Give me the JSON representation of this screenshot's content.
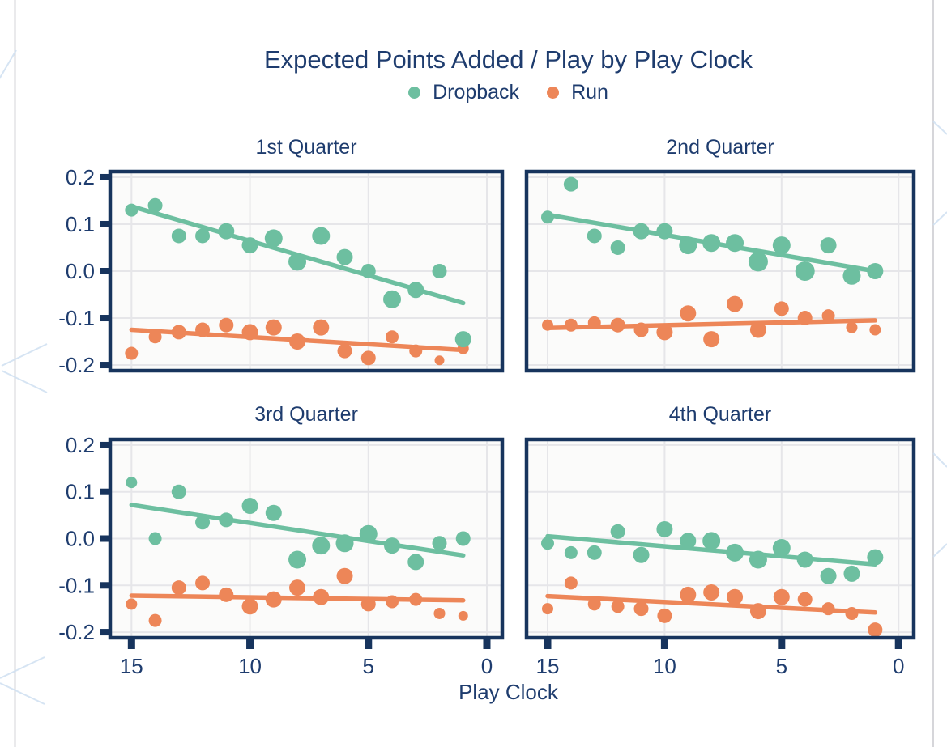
{
  "header": {
    "title": "Expected Points Added / Play by Play Clock"
  },
  "legend": {
    "items": [
      {
        "label": "Dropback",
        "color": "#6dbfa0"
      },
      {
        "label": "Run",
        "color": "#ed8658"
      }
    ]
  },
  "axes": {
    "x_label": "Play Clock",
    "x_tick_labels": [
      "15",
      "10",
      "5",
      "0"
    ],
    "y_tick_labels": [
      "0.2",
      "0.1",
      "0.0",
      "-0.1",
      "-0.2"
    ]
  },
  "chart_data": {
    "type": "scatter",
    "title": "Expected Points Added / Play by Play Clock",
    "xlabel": "Play Clock",
    "ylabel": "",
    "x_axis_reversed": true,
    "xlim": [
      15,
      0
    ],
    "ylim": [
      -0.2,
      0.2
    ],
    "x_ticks": [
      15,
      10,
      5,
      0
    ],
    "y_ticks": [
      0.2,
      0.1,
      0.0,
      -0.1,
      -0.2
    ],
    "grid": true,
    "legend_position": "top-center",
    "point_format": [
      "play_clock",
      "epa_per_play",
      "radius_px"
    ],
    "colors": {
      "dropback": "#6dbfa0",
      "run": "#ed8658",
      "text": "#1e3c6e",
      "panel_border": "#17345d",
      "gridline": "#e6e6e9",
      "panel_bg": "#fbfbfa",
      "background": "#ffffff",
      "pattern_blue": "#cfe0f1",
      "pattern_gray": "#d6d6da"
    },
    "facets": [
      {
        "title": "1st Quarter",
        "dropback": {
          "points": [
            [
              15,
              0.13,
              8
            ],
            [
              14,
              0.14,
              9
            ],
            [
              13,
              0.075,
              9
            ],
            [
              12,
              0.075,
              9
            ],
            [
              11,
              0.085,
              10
            ],
            [
              10,
              0.055,
              10
            ],
            [
              9,
              0.07,
              11
            ],
            [
              8,
              0.02,
              11
            ],
            [
              7,
              0.075,
              11
            ],
            [
              6,
              0.03,
              10
            ],
            [
              5,
              0.0,
              9
            ],
            [
              4,
              -0.06,
              11
            ],
            [
              3,
              -0.04,
              10
            ],
            [
              2,
              0.0,
              9
            ],
            [
              1,
              -0.145,
              10
            ]
          ],
          "trend": {
            "x1": 15,
            "y1": 0.138,
            "x2": 1,
            "y2": -0.068
          }
        },
        "run": {
          "points": [
            [
              15,
              -0.175,
              8
            ],
            [
              14,
              -0.14,
              8
            ],
            [
              13,
              -0.13,
              9
            ],
            [
              12,
              -0.125,
              9
            ],
            [
              11,
              -0.115,
              9
            ],
            [
              10,
              -0.13,
              10
            ],
            [
              9,
              -0.12,
              10
            ],
            [
              8,
              -0.15,
              10
            ],
            [
              7,
              -0.12,
              10
            ],
            [
              6,
              -0.17,
              9
            ],
            [
              5,
              -0.185,
              9
            ],
            [
              4,
              -0.14,
              8
            ],
            [
              3,
              -0.17,
              8
            ],
            [
              2,
              -0.19,
              6
            ],
            [
              1,
              -0.165,
              7
            ]
          ],
          "trend": {
            "x1": 15,
            "y1": -0.125,
            "x2": 1,
            "y2": -0.168
          }
        }
      },
      {
        "title": "2nd Quarter",
        "dropback": {
          "points": [
            [
              15,
              0.115,
              8
            ],
            [
              14,
              0.185,
              9
            ],
            [
              13,
              0.075,
              9
            ],
            [
              12,
              0.05,
              9
            ],
            [
              11,
              0.085,
              10
            ],
            [
              10,
              0.085,
              10
            ],
            [
              9,
              0.055,
              11
            ],
            [
              8,
              0.06,
              11
            ],
            [
              7,
              0.06,
              11
            ],
            [
              6,
              0.02,
              12
            ],
            [
              5,
              0.055,
              11
            ],
            [
              4,
              0.0,
              12
            ],
            [
              3,
              0.055,
              10
            ],
            [
              2,
              -0.01,
              11
            ],
            [
              1,
              0.0,
              10
            ]
          ],
          "trend": {
            "x1": 15,
            "y1": 0.12,
            "x2": 1,
            "y2": 0.0
          }
        },
        "run": {
          "points": [
            [
              15,
              -0.115,
              7
            ],
            [
              14,
              -0.115,
              8
            ],
            [
              13,
              -0.11,
              8
            ],
            [
              12,
              -0.115,
              9
            ],
            [
              11,
              -0.125,
              9
            ],
            [
              10,
              -0.13,
              10
            ],
            [
              9,
              -0.09,
              10
            ],
            [
              8,
              -0.145,
              10
            ],
            [
              7,
              -0.07,
              10
            ],
            [
              6,
              -0.125,
              10
            ],
            [
              5,
              -0.08,
              9
            ],
            [
              4,
              -0.1,
              9
            ],
            [
              3,
              -0.095,
              8
            ],
            [
              2,
              -0.12,
              7
            ],
            [
              1,
              -0.125,
              7
            ]
          ],
          "trend": {
            "x1": 15,
            "y1": -0.121,
            "x2": 1,
            "y2": -0.105
          }
        }
      },
      {
        "title": "3rd Quarter",
        "dropback": {
          "points": [
            [
              15,
              0.12,
              7
            ],
            [
              14,
              0.0,
              8
            ],
            [
              13,
              0.1,
              9
            ],
            [
              12,
              0.035,
              9
            ],
            [
              11,
              0.04,
              9
            ],
            [
              10,
              0.07,
              10
            ],
            [
              9,
              0.055,
              10
            ],
            [
              8,
              -0.045,
              11
            ],
            [
              7,
              -0.015,
              11
            ],
            [
              6,
              -0.01,
              11
            ],
            [
              5,
              0.01,
              11
            ],
            [
              4,
              -0.015,
              10
            ],
            [
              3,
              -0.05,
              10
            ],
            [
              2,
              -0.01,
              9
            ],
            [
              1,
              0.0,
              9
            ]
          ],
          "trend": {
            "x1": 15,
            "y1": 0.072,
            "x2": 1,
            "y2": -0.036
          }
        },
        "run": {
          "points": [
            [
              15,
              -0.14,
              7
            ],
            [
              14,
              -0.175,
              8
            ],
            [
              13,
              -0.105,
              9
            ],
            [
              12,
              -0.095,
              9
            ],
            [
              11,
              -0.12,
              9
            ],
            [
              10,
              -0.145,
              10
            ],
            [
              9,
              -0.13,
              10
            ],
            [
              8,
              -0.105,
              10
            ],
            [
              7,
              -0.125,
              10
            ],
            [
              6,
              -0.08,
              10
            ],
            [
              5,
              -0.14,
              9
            ],
            [
              4,
              -0.135,
              8
            ],
            [
              3,
              -0.13,
              8
            ],
            [
              2,
              -0.16,
              7
            ],
            [
              1,
              -0.165,
              6
            ]
          ],
          "trend": {
            "x1": 15,
            "y1": -0.122,
            "x2": 1,
            "y2": -0.132
          }
        }
      },
      {
        "title": "4th Quarter",
        "dropback": {
          "points": [
            [
              15,
              -0.01,
              8
            ],
            [
              14,
              -0.03,
              8
            ],
            [
              13,
              -0.03,
              9
            ],
            [
              12,
              0.015,
              9
            ],
            [
              11,
              -0.035,
              10
            ],
            [
              10,
              0.02,
              10
            ],
            [
              9,
              -0.005,
              10
            ],
            [
              8,
              -0.005,
              11
            ],
            [
              7,
              -0.03,
              11
            ],
            [
              6,
              -0.045,
              11
            ],
            [
              5,
              -0.02,
              11
            ],
            [
              4,
              -0.045,
              10
            ],
            [
              3,
              -0.08,
              10
            ],
            [
              2,
              -0.075,
              10
            ],
            [
              1,
              -0.04,
              10
            ]
          ],
          "trend": {
            "x1": 15,
            "y1": 0.005,
            "x2": 1,
            "y2": -0.055
          }
        },
        "run": {
          "points": [
            [
              15,
              -0.15,
              7
            ],
            [
              14,
              -0.095,
              8
            ],
            [
              13,
              -0.14,
              8
            ],
            [
              12,
              -0.145,
              8
            ],
            [
              11,
              -0.15,
              9
            ],
            [
              10,
              -0.165,
              9
            ],
            [
              9,
              -0.12,
              10
            ],
            [
              8,
              -0.115,
              10
            ],
            [
              7,
              -0.125,
              10
            ],
            [
              6,
              -0.155,
              10
            ],
            [
              5,
              -0.125,
              10
            ],
            [
              4,
              -0.13,
              9
            ],
            [
              3,
              -0.15,
              8
            ],
            [
              2,
              -0.16,
              8
            ],
            [
              1,
              -0.195,
              9
            ]
          ],
          "trend": {
            "x1": 15,
            "y1": -0.123,
            "x2": 1,
            "y2": -0.158
          }
        }
      }
    ]
  }
}
